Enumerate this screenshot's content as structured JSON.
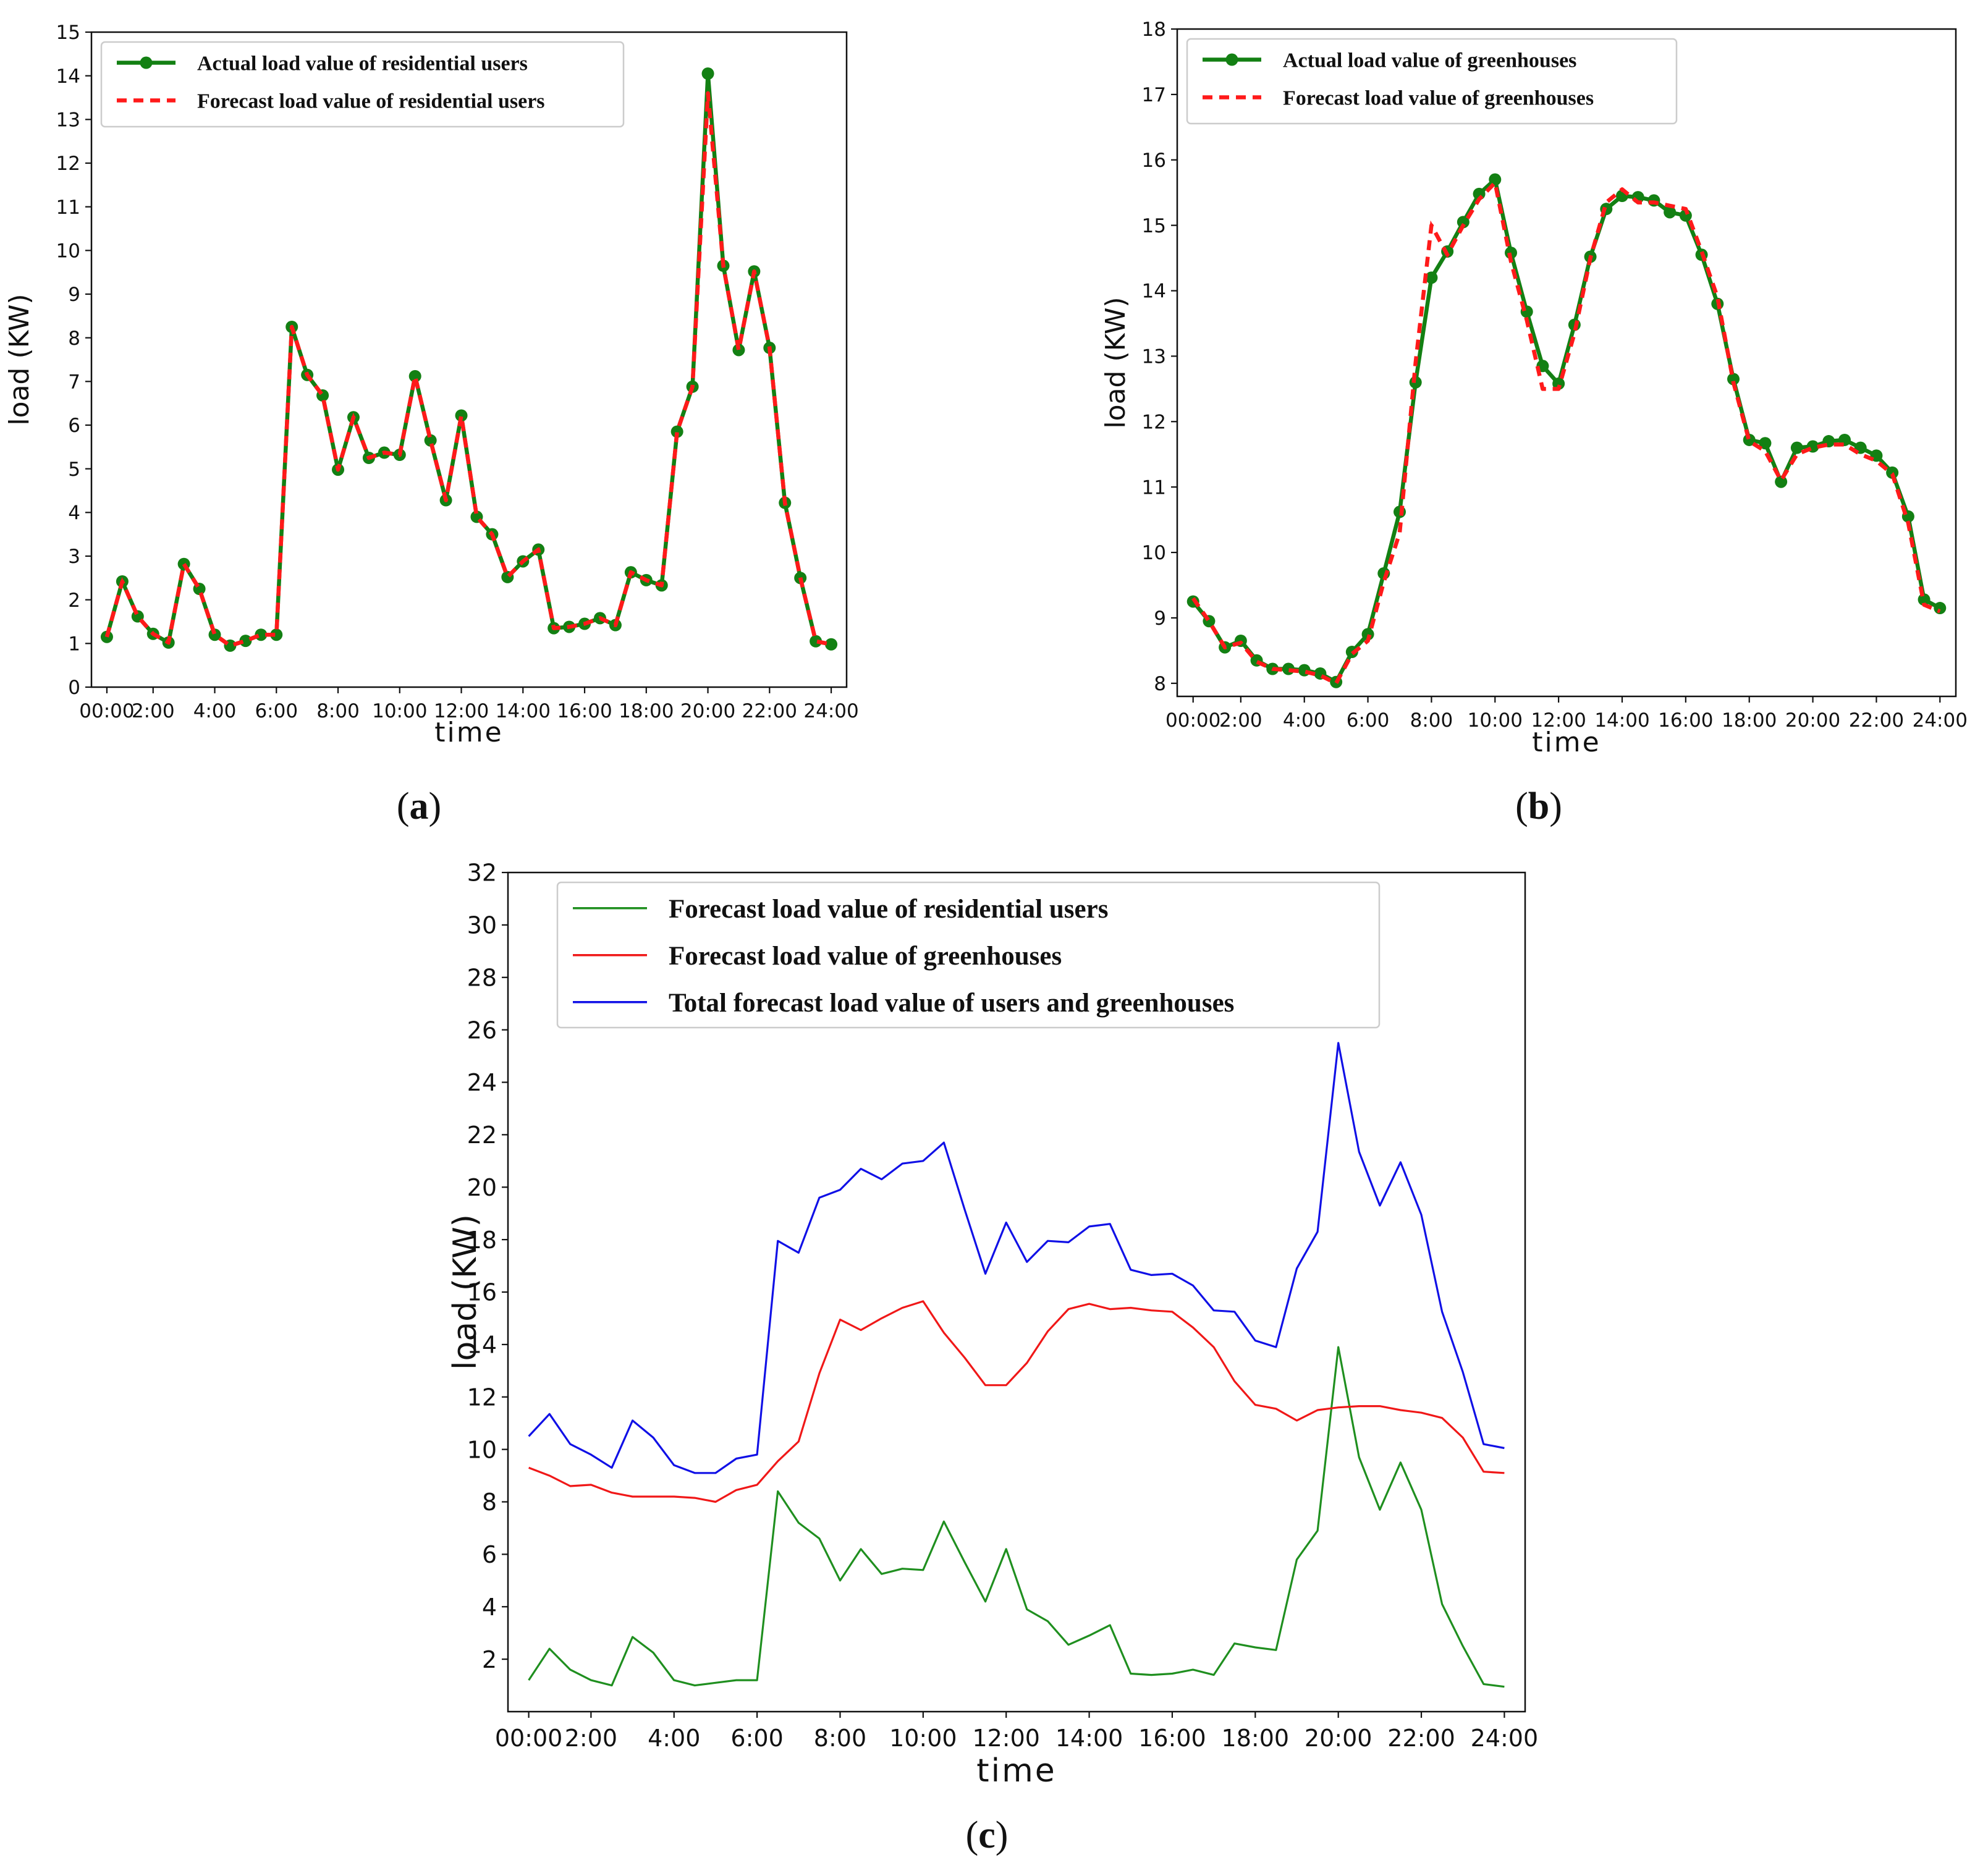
{
  "figure": {
    "panel_labels": [
      "(a)",
      "(b)",
      "(c)"
    ]
  },
  "chart_data": [
    {
      "id": "a",
      "type": "line",
      "title": "",
      "xlabel": "time",
      "ylabel": "load (KW)",
      "xlim": [
        0,
        24.5
      ],
      "ylim": [
        0,
        15
      ],
      "xticks": [
        0.5,
        2,
        4,
        6,
        8,
        10,
        12,
        14,
        16,
        18,
        20,
        22,
        24
      ],
      "xtick_labels": [
        "00:00",
        "2:00",
        "4:00",
        "6:00",
        "8:00",
        "10:00",
        "12:00",
        "14:00",
        "16:00",
        "18:00",
        "20:00",
        "22:00",
        "24:00"
      ],
      "yticks": [
        0,
        1,
        2,
        3,
        4,
        5,
        6,
        7,
        8,
        9,
        10,
        11,
        12,
        13,
        14,
        15
      ],
      "legend_position": "top-left",
      "x": [
        0.5,
        1,
        1.5,
        2,
        2.5,
        3,
        3.5,
        4,
        4.5,
        5,
        5.5,
        6,
        6.5,
        7,
        7.5,
        8,
        8.5,
        9,
        9.5,
        10,
        10.5,
        11,
        11.5,
        12,
        12.5,
        13,
        13.5,
        14,
        14.5,
        15,
        15.5,
        16,
        16.5,
        17,
        17.5,
        18,
        18.5,
        19,
        19.5,
        20,
        20.5,
        21,
        21.5,
        22,
        22.5,
        23,
        23.5,
        24
      ],
      "series": [
        {
          "name": "Actual load value of residential users",
          "style": "solid-marker",
          "color": "#138013",
          "values": [
            1.15,
            2.42,
            1.62,
            1.22,
            1.02,
            2.82,
            2.25,
            1.2,
            0.95,
            1.06,
            1.2,
            1.2,
            8.25,
            7.15,
            6.68,
            4.98,
            6.18,
            5.25,
            5.37,
            5.32,
            7.12,
            5.65,
            4.28,
            6.22,
            3.9,
            3.5,
            2.52,
            2.88,
            3.15,
            1.35,
            1.38,
            1.45,
            1.58,
            1.42,
            2.63,
            2.45,
            2.33,
            5.85,
            6.88,
            14.05,
            9.65,
            7.72,
            9.52,
            7.77,
            4.22,
            2.5,
            1.05,
            0.98
          ]
        },
        {
          "name": "Forecast load value of residential users",
          "style": "dashed",
          "color": "#ff1a1a",
          "values": [
            1.15,
            2.42,
            1.62,
            1.22,
            1.02,
            2.82,
            2.25,
            1.2,
            0.95,
            1.06,
            1.2,
            1.2,
            8.25,
            7.15,
            6.68,
            4.98,
            6.18,
            5.25,
            5.37,
            5.32,
            7.12,
            5.65,
            4.28,
            6.22,
            3.9,
            3.5,
            2.52,
            2.88,
            3.15,
            1.35,
            1.38,
            1.45,
            1.58,
            1.42,
            2.63,
            2.45,
            2.33,
            5.85,
            6.88,
            13.6,
            9.65,
            7.72,
            9.52,
            7.77,
            4.22,
            2.5,
            1.05,
            0.98
          ]
        }
      ]
    },
    {
      "id": "b",
      "type": "line",
      "title": "",
      "xlabel": "time",
      "ylabel": "load (KW)",
      "xlim": [
        0,
        24.5
      ],
      "ylim": [
        7.8,
        18
      ],
      "xticks": [
        0.5,
        2,
        4,
        6,
        8,
        10,
        12,
        14,
        16,
        18,
        20,
        22,
        24
      ],
      "xtick_labels": [
        "00:00",
        "2:00",
        "4:00",
        "6:00",
        "8:00",
        "10:00",
        "12:00",
        "14:00",
        "16:00",
        "18:00",
        "20:00",
        "22:00",
        "24:00"
      ],
      "yticks": [
        8,
        9,
        10,
        11,
        12,
        13,
        14,
        15,
        16,
        17,
        18
      ],
      "legend_position": "top-left",
      "x": [
        0.5,
        1,
        1.5,
        2,
        2.5,
        3,
        3.5,
        4,
        4.5,
        5,
        5.5,
        6,
        6.5,
        7,
        7.5,
        8,
        8.5,
        9,
        9.5,
        10,
        10.5,
        11,
        11.5,
        12,
        12.5,
        13,
        13.5,
        14,
        14.5,
        15,
        15.5,
        16,
        16.5,
        17,
        17.5,
        18,
        18.5,
        19,
        19.5,
        20,
        20.5,
        21,
        21.5,
        22,
        22.5,
        23,
        23.5,
        24
      ],
      "series": [
        {
          "name": "Actual load value of greenhouses",
          "style": "solid-marker",
          "color": "#138013",
          "values": [
            9.25,
            8.95,
            8.55,
            8.65,
            8.35,
            8.22,
            8.22,
            8.2,
            8.15,
            8.02,
            8.48,
            8.75,
            9.68,
            10.62,
            12.6,
            14.2,
            14.6,
            15.05,
            15.48,
            15.7,
            14.58,
            13.68,
            12.85,
            12.58,
            13.48,
            14.52,
            15.25,
            15.45,
            15.43,
            15.38,
            15.2,
            15.15,
            14.55,
            13.8,
            12.65,
            11.72,
            11.67,
            11.08,
            11.6,
            11.62,
            11.7,
            11.72,
            11.6,
            11.48,
            11.22,
            10.55,
            9.28,
            9.15
          ]
        },
        {
          "name": "Forecast load value of greenhouses",
          "style": "dashed",
          "color": "#ff1a1a",
          "values": [
            9.3,
            8.95,
            8.55,
            8.62,
            8.33,
            8.22,
            8.2,
            8.18,
            8.12,
            8.0,
            8.45,
            8.65,
            9.55,
            10.3,
            12.9,
            15.0,
            14.55,
            15.0,
            15.4,
            15.65,
            14.45,
            13.55,
            12.5,
            12.5,
            13.35,
            14.5,
            15.35,
            15.55,
            15.35,
            15.35,
            15.3,
            15.25,
            14.6,
            13.9,
            12.6,
            11.7,
            11.55,
            11.1,
            11.5,
            11.6,
            11.65,
            11.65,
            11.5,
            11.4,
            11.2,
            10.45,
            9.2,
            9.1
          ]
        }
      ]
    },
    {
      "id": "c",
      "type": "line",
      "title": "",
      "xlabel": "time",
      "ylabel": "load (KW)",
      "xlim": [
        0,
        24.5
      ],
      "ylim": [
        0,
        32
      ],
      "xticks": [
        0.5,
        2,
        4,
        6,
        8,
        10,
        12,
        14,
        16,
        18,
        20,
        22,
        24
      ],
      "xtick_labels": [
        "00:00",
        "2:00",
        "4:00",
        "6:00",
        "8:00",
        "10:00",
        "12:00",
        "14:00",
        "16:00",
        "18:00",
        "20:00",
        "22:00",
        "24:00"
      ],
      "yticks": [
        2,
        4,
        6,
        8,
        10,
        12,
        14,
        16,
        18,
        20,
        22,
        24,
        26,
        28,
        30,
        32
      ],
      "legend_position": "top-left",
      "x": [
        0.5,
        1,
        1.5,
        2,
        2.5,
        3,
        3.5,
        4,
        4.5,
        5,
        5.5,
        6,
        6.5,
        7,
        7.5,
        8,
        8.5,
        9,
        9.5,
        10,
        10.5,
        11,
        11.5,
        12,
        12.5,
        13,
        13.5,
        14,
        14.5,
        15,
        15.5,
        16,
        16.5,
        17,
        17.5,
        18,
        18.5,
        19,
        19.5,
        20,
        20.5,
        21,
        21.5,
        22,
        22.5,
        23,
        23.5,
        24
      ],
      "series": [
        {
          "name": "Forecast load value of residential users",
          "style": "solid",
          "color": "#1f8f1f",
          "values": [
            1.2,
            2.4,
            1.6,
            1.2,
            1.0,
            2.85,
            2.25,
            1.2,
            1.0,
            1.1,
            1.2,
            1.2,
            8.4,
            7.2,
            6.6,
            5.0,
            6.2,
            5.25,
            5.45,
            5.4,
            7.25,
            5.7,
            4.2,
            6.2,
            3.9,
            3.45,
            2.55,
            2.9,
            3.3,
            1.45,
            1.4,
            1.45,
            1.6,
            1.4,
            2.6,
            2.45,
            2.35,
            5.8,
            6.9,
            13.9,
            9.7,
            7.7,
            9.5,
            7.7,
            4.1,
            2.5,
            1.05,
            0.95
          ]
        },
        {
          "name": "Forecast load value of greenhouses",
          "style": "solid",
          "color": "#f01818",
          "values": [
            9.3,
            9.0,
            8.6,
            8.65,
            8.35,
            8.2,
            8.2,
            8.2,
            8.15,
            8.0,
            8.45,
            8.65,
            9.55,
            10.3,
            12.9,
            14.95,
            14.55,
            15.0,
            15.4,
            15.65,
            14.45,
            13.5,
            12.45,
            12.45,
            13.3,
            14.5,
            15.35,
            15.55,
            15.35,
            15.4,
            15.3,
            15.25,
            14.65,
            13.9,
            12.6,
            11.7,
            11.55,
            11.1,
            11.5,
            11.6,
            11.65,
            11.65,
            11.5,
            11.4,
            11.2,
            10.45,
            9.15,
            9.1
          ]
        },
        {
          "name": "Total forecast load value of users and greenhouses",
          "style": "solid",
          "color": "#1010e6",
          "values": [
            10.5,
            11.35,
            10.2,
            9.8,
            9.3,
            11.1,
            10.45,
            9.4,
            9.1,
            9.1,
            9.65,
            9.8,
            17.95,
            17.5,
            19.6,
            19.9,
            20.7,
            20.3,
            20.9,
            21.0,
            21.7,
            19.15,
            16.7,
            18.65,
            17.15,
            17.95,
            17.9,
            18.5,
            18.6,
            16.85,
            16.65,
            16.7,
            16.25,
            15.3,
            15.25,
            14.15,
            13.9,
            16.9,
            18.3,
            25.5,
            21.35,
            19.3,
            20.95,
            18.95,
            15.25,
            12.95,
            10.2,
            10.05
          ]
        }
      ]
    }
  ]
}
